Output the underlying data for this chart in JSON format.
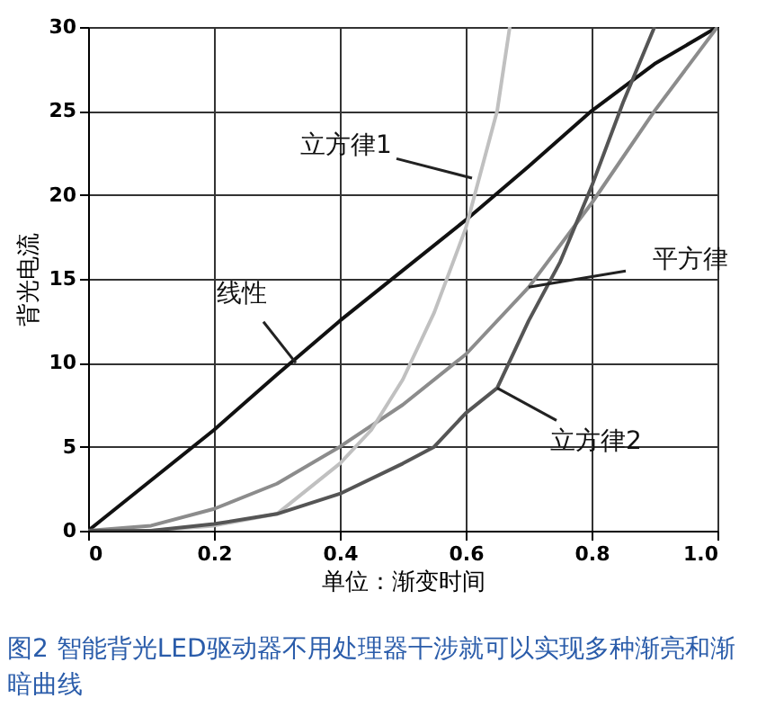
{
  "chart_data": {
    "type": "line",
    "xlabel": "单位：渐变时间",
    "ylabel": "背光电流",
    "xlim": [
      0,
      1
    ],
    "ylim": [
      0,
      30
    ],
    "xticks": [
      {
        "value": 0,
        "label": "0"
      },
      0.2,
      0.4,
      0.6,
      0.8,
      {
        "value": 1,
        "label": "1.0"
      }
    ],
    "yticks": [
      0,
      5,
      10,
      15,
      20,
      25,
      30
    ],
    "grid": true,
    "legend": false,
    "marker": "none",
    "line_style": "solid",
    "series": [
      {
        "color": "#111111",
        "x": [
          0,
          0.1,
          0.2,
          0.3,
          0.4,
          0.5,
          0.6,
          0.7,
          0.8,
          0.9,
          1
        ],
        "values": [
          0,
          3,
          6,
          9.3,
          12.5,
          15.5,
          18.5,
          21.7,
          25,
          27.8,
          30
        ]
      },
      {
        "color": "#8c8c8c",
        "x": [
          0,
          0.1,
          0.2,
          0.3,
          0.4,
          0.5,
          0.6,
          0.7,
          0.8,
          0.9,
          1
        ],
        "values": [
          0,
          0.3,
          1.3,
          2.8,
          5,
          7.5,
          10.5,
          14.5,
          19.5,
          25,
          30
        ]
      },
      {
        "color": "#c0c0c0",
        "x": [
          0,
          0.1,
          0.2,
          0.3,
          0.4,
          0.45,
          0.5,
          0.55,
          0.6,
          0.65,
          0.67
        ],
        "values": [
          0,
          0,
          0.3,
          1,
          4,
          6,
          9,
          13,
          18,
          25,
          30
        ]
      },
      {
        "color": "#555555",
        "x": [
          0,
          0.1,
          0.2,
          0.3,
          0.4,
          0.5,
          0.55,
          0.6,
          0.65,
          0.7,
          0.75,
          0.8,
          0.85,
          0.9
        ],
        "values": [
          0,
          0,
          0.4,
          1,
          2.2,
          4,
          5,
          7,
          8.5,
          12.5,
          16,
          20.5,
          25.5,
          30
        ]
      }
    ],
    "annotations": [
      {
        "text": "立方律1",
        "x": 0.61,
        "y": 21
      },
      {
        "text": "线性",
        "x": 0.33,
        "y": 10
      },
      {
        "text": "平方律",
        "x": 0.7,
        "y": 14.5
      },
      {
        "text": "立方律2",
        "x": 0.65,
        "y": 8.5
      },
      "图2  智能背光LED驱动器不用处理器干涉就可以实现多种渐亮和渐暗曲线"
    ]
  }
}
